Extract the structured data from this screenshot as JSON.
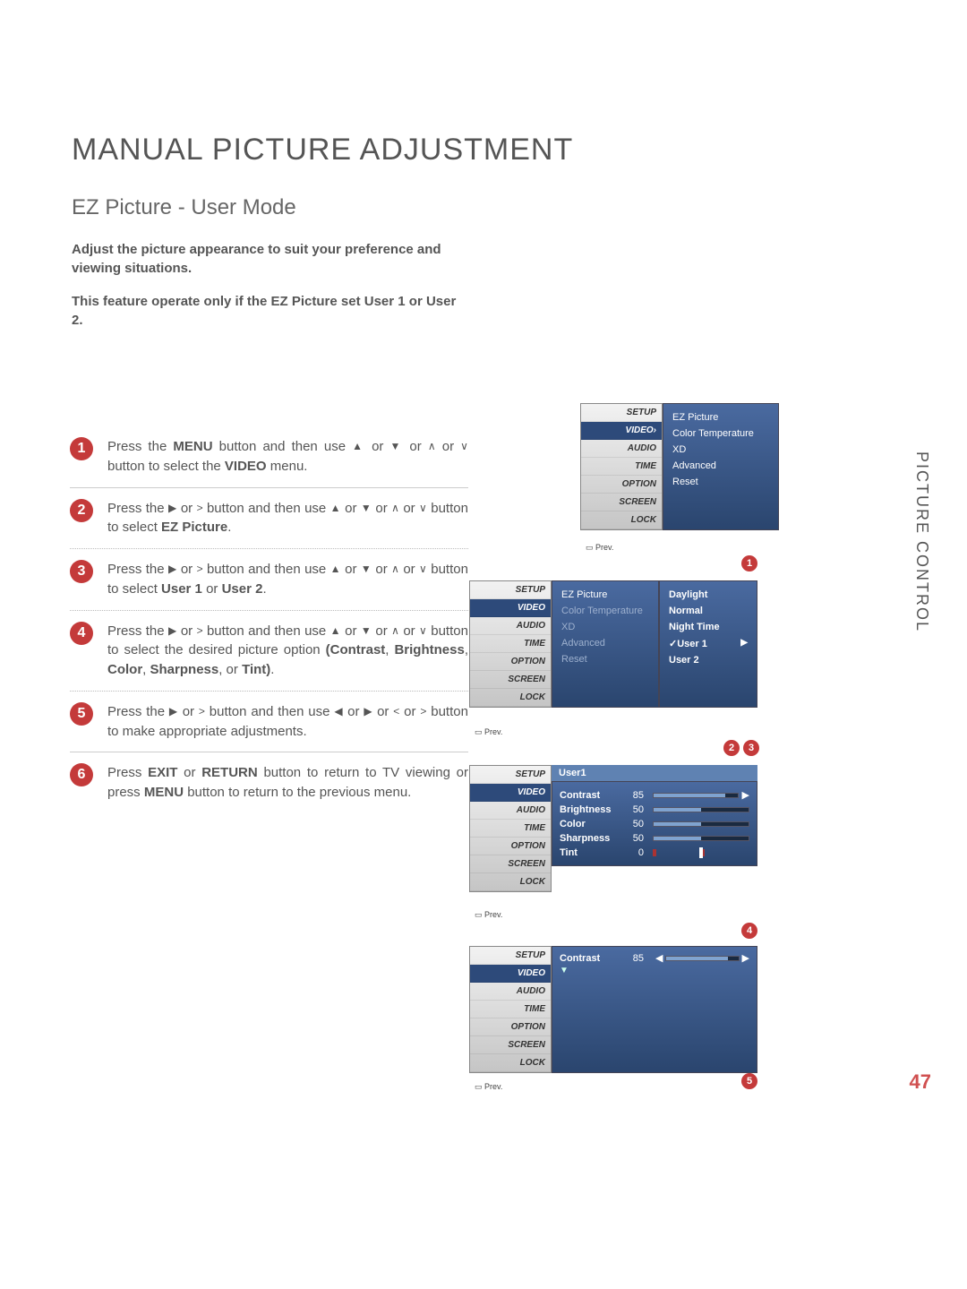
{
  "title": "MANUAL PICTURE ADJUSTMENT",
  "subtitle": "EZ Picture - User Mode",
  "intro1": "Adjust the picture appearance to suit your preference and viewing situations.",
  "intro2_a": "This feature operate only if the EZ Picture set ",
  "intro2_b": "User 1",
  "intro2_c": " or ",
  "intro2_d": "User 2",
  "intro2_e": ".",
  "side_label": "PICTURE CONTROL",
  "page_number": "47",
  "steps": [
    {
      "n": "1",
      "html": "Press the <b>MENU</b> button and then use <span class='tri'>▲</span> or <span class='tri'>▼</span>  or  <span class='tri'>∧</span> or <span class='tri'>∨</span>  button to select the <b>VIDEO</b> menu."
    },
    {
      "n": "2",
      "html": "Press the <span class='tri'>▶</span> or <span class='tri'>&gt;</span>  button and then use <span class='tri'>▲</span> or <span class='tri'>▼</span>  or  <span class='tri'>∧</span> or <span class='tri'>∨</span>  button to select <b>EZ Picture</b>."
    },
    {
      "n": "3",
      "html": "Press the <span class='tri'>▶</span> or <span class='tri'>&gt;</span>  button and then use <span class='tri'>▲</span> or <span class='tri'>▼</span>  or  <span class='tri'>∧</span> or <span class='tri'>∨</span>  button to select <b>User 1</b> or <b>User 2</b>."
    },
    {
      "n": "4",
      "html": "Press the <span class='tri'>▶</span> or <span class='tri'>&gt;</span>  button and then use <span class='tri'>▲</span> or <span class='tri'>▼</span>  or  <span class='tri'>∧</span> or <span class='tri'>∨</span>  button to select the desired picture option <b>(Contrast</b>, <b>Brightness</b>, <b>Color</b>, <b>Sharpness</b>, or <b>Tint)</b>."
    },
    {
      "n": "5",
      "html": "Press the <span class='tri'>▶</span> or <span class='tri'>&gt;</span>  button and then use <span class='tri'>◀</span> or <span class='tri'>▶</span> or <span class='tri'>&lt;</span>  or <span class='tri'>&gt;</span>  button to make appropriate adjustments."
    },
    {
      "n": "6",
      "html": "Press <b>EXIT</b> or <b>RETURN</b> button to return to TV viewing or press <b>MENU</b> button to return to the previous menu."
    }
  ],
  "sidebar_items": [
    "SETUP",
    "VIDEO",
    "AUDIO",
    "TIME",
    "OPTION",
    "SCREEN",
    "LOCK"
  ],
  "osd1_panel": [
    "EZ Picture",
    "Color Temperature",
    "XD",
    "Advanced",
    "Reset"
  ],
  "osd2_left_active": "EZ Picture",
  "osd2_left_dim": [
    "Color Temperature",
    "XD",
    "Advanced",
    "Reset"
  ],
  "osd2_right": [
    "Daylight",
    "Normal",
    "Night Time",
    "✓User 1",
    "User 2"
  ],
  "osd3_header": "User1",
  "osd3_rows": [
    {
      "label": "Contrast",
      "val": "85",
      "pct": 85
    },
    {
      "label": "Brightness",
      "val": "50",
      "pct": 50
    },
    {
      "label": "Color",
      "val": "50",
      "pct": 50
    },
    {
      "label": "Sharpness",
      "val": "50",
      "pct": 50
    }
  ],
  "osd3_tint_label": "Tint",
  "osd3_tint_val": "0",
  "osd4_label": "Contrast",
  "osd4_val": "85",
  "prev_label": "Prev.",
  "circle_labels": [
    "1",
    "2",
    "3",
    "4",
    "5"
  ],
  "colors": {
    "accent": "#c43a3a",
    "panel_bg_top": "#4a6aa0",
    "panel_bg_bot": "#2a456e"
  }
}
